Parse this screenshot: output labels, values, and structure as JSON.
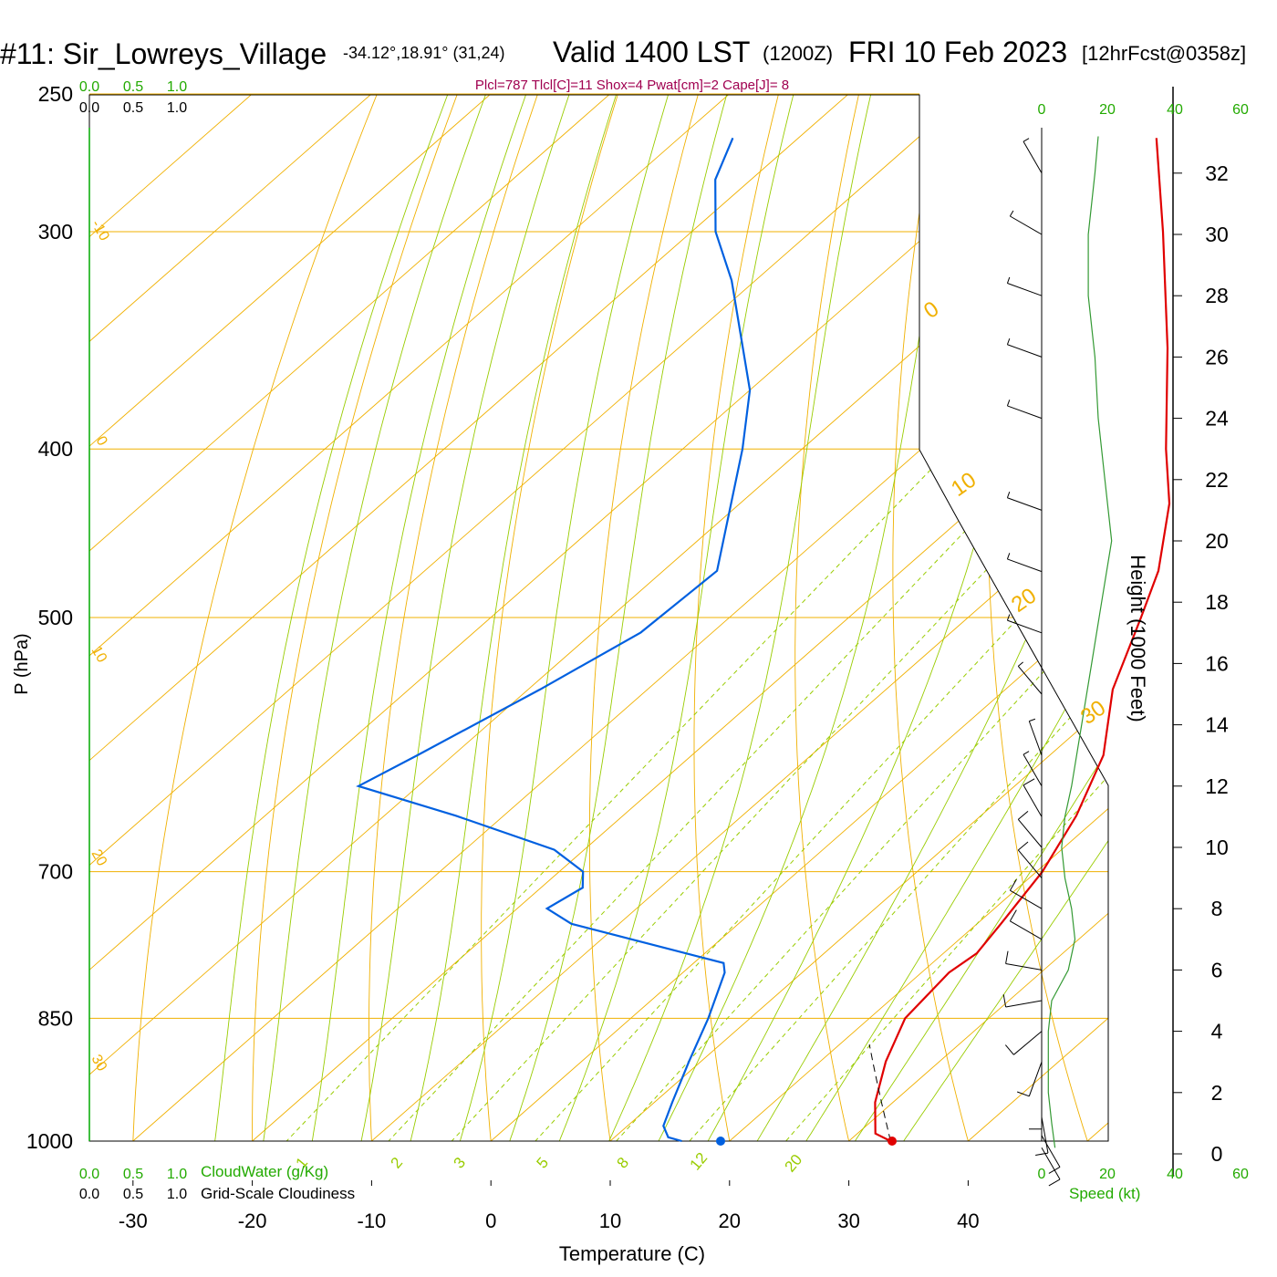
{
  "header": {
    "station": "#11: Sir_Lowreys_Village",
    "coords": "-34.12°,18.91° (31,24)",
    "valid": "Valid 1400 LST",
    "zulu": "(1200Z)",
    "date": "FRI 10 Feb 2023",
    "forecast": "[12hrFcst@0358z]",
    "indices": "Plcl=787 Tlcl[C]=11 Shox=4 Pwat[cm]=2 Cape[J]= 8"
  },
  "colors": {
    "temperature": "#e00000",
    "dewpoint": "#0060e0",
    "isobar": "#f0b000",
    "dry_adiabat": "#f0b000",
    "moist_adiabat": "#99cc00",
    "mixing_ratio": "#99cc00",
    "windspeed": "#339933",
    "cloud_axis": "#00aa00",
    "indices_text": "#a00050"
  },
  "chart_data": {
    "type": "skew-t",
    "xlabel": "Temperature (C)",
    "ylabel": "P (hPa)",
    "height_label": "Height (1000 Feet)",
    "pressure_range": [
      1000,
      250
    ],
    "temperature_ticks": [
      -30,
      -20,
      -10,
      0,
      10,
      20,
      30,
      40
    ],
    "pressure_ticks": [
      250,
      300,
      400,
      500,
      700,
      850,
      1000
    ],
    "height_ticks": [
      0,
      2,
      4,
      6,
      8,
      10,
      12,
      14,
      16,
      18,
      20,
      22,
      24,
      26,
      28,
      30,
      32
    ],
    "cloud_scale_top": [
      "0.0",
      "0.5",
      "1.0"
    ],
    "cloud_scale_bottom": [
      "0.0",
      "0.5",
      "1.0"
    ],
    "cloudwater_label": "CloudWater (g/Kg)",
    "cloudiness_label": "Grid-Scale Cloudiness",
    "speed_label": "Speed (kt)",
    "speed_ticks": [
      "0",
      "20",
      "40",
      "60"
    ],
    "dry_adiabat_labels": [
      "30",
      "20",
      "10",
      "0",
      "-10",
      "-20",
      "-30"
    ],
    "moist_adiabat_labels": [
      "0",
      "10",
      "20",
      "30"
    ],
    "mixing_ratio_labels": [
      "1",
      "2",
      "3",
      "5",
      "8",
      "12",
      "20"
    ],
    "temperature_profile": [
      {
        "p": 1000,
        "t": 33.5
      },
      {
        "p": 990,
        "t": 31.5
      },
      {
        "p": 950,
        "t": 28.5
      },
      {
        "p": 900,
        "t": 25.5
      },
      {
        "p": 850,
        "t": 23.0
      },
      {
        "p": 800,
        "t": 22.3
      },
      {
        "p": 780,
        "t": 22.8
      },
      {
        "p": 750,
        "t": 22.0
      },
      {
        "p": 700,
        "t": 20.5
      },
      {
        "p": 650,
        "t": 18.0
      },
      {
        "p": 600,
        "t": 14.5
      },
      {
        "p": 550,
        "t": 9.0
      },
      {
        "p": 500,
        "t": 4.5
      },
      {
        "p": 470,
        "t": 1.5
      },
      {
        "p": 430,
        "t": -4.0
      },
      {
        "p": 400,
        "t": -9.5
      },
      {
        "p": 350,
        "t": -19.0
      },
      {
        "p": 300,
        "t": -30.5
      },
      {
        "p": 265,
        "t": -40.0
      }
    ],
    "dewpoint_profile": [
      {
        "p": 1000,
        "td": 16.0
      },
      {
        "p": 995,
        "td": 14.5
      },
      {
        "p": 980,
        "td": 13.0
      },
      {
        "p": 950,
        "td": 11.5
      },
      {
        "p": 900,
        "td": 9.0
      },
      {
        "p": 850,
        "td": 6.5
      },
      {
        "p": 800,
        "td": 3.5
      },
      {
        "p": 790,
        "td": 2.5
      },
      {
        "p": 750,
        "td": -14.0
      },
      {
        "p": 735,
        "td": -17.5
      },
      {
        "p": 715,
        "td": -16.5
      },
      {
        "p": 700,
        "td": -18.0
      },
      {
        "p": 680,
        "td": -22.5
      },
      {
        "p": 650,
        "td": -34.0
      },
      {
        "p": 625,
        "td": -45.0
      },
      {
        "p": 600,
        "td": -43.0
      },
      {
        "p": 550,
        "td": -39.0
      },
      {
        "p": 510,
        "td": -36.0
      },
      {
        "p": 470,
        "td": -35.5
      },
      {
        "p": 400,
        "td": -45.0
      },
      {
        "p": 370,
        "td": -50.0
      },
      {
        "p": 320,
        "td": -62.0
      },
      {
        "p": 300,
        "td": -68.0
      },
      {
        "p": 280,
        "td": -73.0
      },
      {
        "p": 265,
        "td": -75.5
      }
    ],
    "surface_parcel": {
      "t": 33.5,
      "td": 19.2,
      "p": 1000
    },
    "wind_barbs": [
      {
        "h": 0.2,
        "dir": 150,
        "spd": 15
      },
      {
        "h": 0.6,
        "dir": 150,
        "spd": 15
      },
      {
        "h": 1.2,
        "dir": 170,
        "spd": 15
      },
      {
        "h": 2.0,
        "dir": 180,
        "spd": 10
      },
      {
        "h": 3.0,
        "dir": 200,
        "spd": 10
      },
      {
        "h": 4.0,
        "dir": 230,
        "spd": 10
      },
      {
        "h": 5.0,
        "dir": 260,
        "spd": 15
      },
      {
        "h": 6.0,
        "dir": 280,
        "spd": 15
      },
      {
        "h": 7.0,
        "dir": 300,
        "spd": 15
      },
      {
        "h": 8.0,
        "dir": 300,
        "spd": 15
      },
      {
        "h": 9.0,
        "dir": 320,
        "spd": 10
      },
      {
        "h": 10.0,
        "dir": 320,
        "spd": 10
      },
      {
        "h": 11.0,
        "dir": 330,
        "spd": 10
      },
      {
        "h": 12.0,
        "dir": 330,
        "spd": 5
      },
      {
        "h": 13.0,
        "dir": 340,
        "spd": 5
      },
      {
        "h": 15.0,
        "dir": 320,
        "spd": 5
      },
      {
        "h": 17.0,
        "dir": 290,
        "spd": 5
      },
      {
        "h": 19.0,
        "dir": 290,
        "spd": 5
      },
      {
        "h": 21.0,
        "dir": 290,
        "spd": 5
      },
      {
        "h": 24.0,
        "dir": 290,
        "spd": 5
      },
      {
        "h": 26.0,
        "dir": 290,
        "spd": 5
      },
      {
        "h": 28.0,
        "dir": 290,
        "spd": 5
      },
      {
        "h": 30.0,
        "dir": 300,
        "spd": 5
      },
      {
        "h": 32.0,
        "dir": 330,
        "spd": 5
      }
    ],
    "wind_speed_profile": [
      {
        "h": 0.2,
        "spd": 4
      },
      {
        "h": 1.0,
        "spd": 3
      },
      {
        "h": 2.0,
        "spd": 2
      },
      {
        "h": 3.0,
        "spd": 2
      },
      {
        "h": 4.0,
        "spd": 2
      },
      {
        "h": 5.0,
        "spd": 3
      },
      {
        "h": 6.0,
        "spd": 8
      },
      {
        "h": 7.0,
        "spd": 10
      },
      {
        "h": 8.0,
        "spd": 9
      },
      {
        "h": 9.0,
        "spd": 7
      },
      {
        "h": 10.0,
        "spd": 6
      },
      {
        "h": 11.0,
        "spd": 7
      },
      {
        "h": 12.0,
        "spd": 9
      },
      {
        "h": 14.0,
        "spd": 12
      },
      {
        "h": 16.0,
        "spd": 15
      },
      {
        "h": 18.0,
        "spd": 18
      },
      {
        "h": 20.0,
        "spd": 21
      },
      {
        "h": 22.0,
        "spd": 19
      },
      {
        "h": 24.0,
        "spd": 17
      },
      {
        "h": 26.0,
        "spd": 16
      },
      {
        "h": 28.0,
        "spd": 14
      },
      {
        "h": 30.0,
        "spd": 14
      },
      {
        "h": 32.0,
        "spd": 16
      },
      {
        "h": 33.2,
        "spd": 17
      }
    ]
  }
}
